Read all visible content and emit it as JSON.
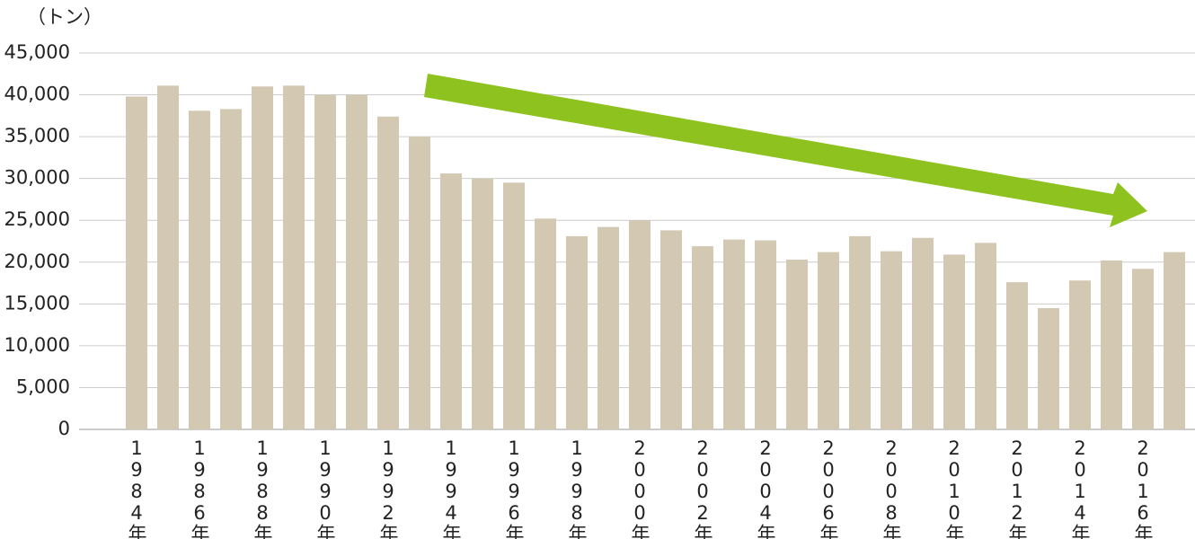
{
  "chart_data": {
    "type": "bar",
    "y_unit": "（トン）",
    "categories": [
      "1984年",
      null,
      "1986年",
      null,
      "1988年",
      null,
      "1990年",
      null,
      "1992年",
      null,
      "1994年",
      null,
      "1996年",
      null,
      "1998年",
      null,
      "2000年",
      null,
      "2002年",
      null,
      "2004年",
      null,
      "2006年",
      null,
      "2008年",
      null,
      "2010年",
      null,
      "2012年",
      null,
      "2014年",
      null,
      "2016年",
      null
    ],
    "values": [
      39800,
      41100,
      38100,
      38300,
      41000,
      41100,
      40000,
      40000,
      37400,
      35000,
      30600,
      30000,
      29500,
      25200,
      23100,
      24200,
      25000,
      23800,
      21900,
      22700,
      22600,
      20300,
      21200,
      23100,
      21300,
      22900,
      20900,
      22300,
      17600,
      14500,
      17800,
      20200,
      19200,
      21200
    ],
    "color": "#d3c9b3",
    "ylim": [
      0,
      45000
    ],
    "yticks": [
      0,
      {
        "value": 5000,
        "label": "5,000"
      },
      {
        "value": 10000,
        "label": "10,000"
      },
      {
        "value": 15000,
        "label": "15,000"
      },
      {
        "value": 20000,
        "label": "20,000"
      },
      {
        "value": 25000,
        "label": "25,000"
      },
      {
        "value": 30000,
        "label": "30,000"
      },
      {
        "value": 35000,
        "label": "35,000"
      },
      {
        "value": 40000,
        "label": "40,000"
      },
      {
        "value": 45000,
        "label": "45,000"
      }
    ],
    "grid": true
  }
}
